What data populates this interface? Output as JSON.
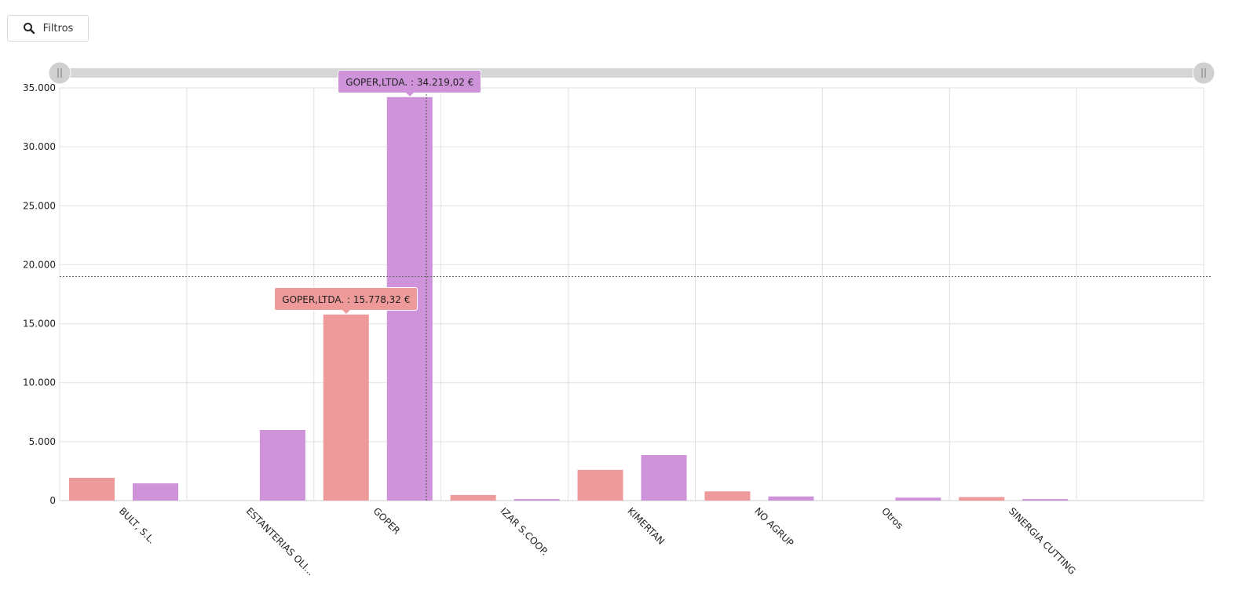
{
  "toolbar": {
    "filter_label": "Filtros",
    "filter_icon": "search-icon"
  },
  "colors": {
    "series1": "#ef9a9a",
    "series2": "#ce93d8",
    "grid": "#e0e0e0",
    "slider": "#d6d6d6"
  },
  "tooltips": [
    {
      "text": "GOPER,LTDA. : 34.219,02 €",
      "series": 1,
      "category": "GOPER"
    },
    {
      "text": "GOPER,LTDA. : 15.778,32 €",
      "series": 0,
      "category": "GOPER"
    }
  ],
  "chart_data": {
    "type": "bar",
    "categories": [
      "BULT, S.L.",
      "ESTANTERIAS OLI...",
      "GOPER",
      "IZAR  S.COOP.",
      "KIMERTAN",
      "NO AGRUP",
      "Otros",
      "SINERGIA CUTTING",
      ""
    ],
    "series": [
      {
        "values": [
          1930,
          0,
          15778.32,
          470,
          2600,
          780,
          0,
          300,
          0
        ]
      },
      {
        "values": [
          1460,
          5990,
          34219.02,
          130,
          3860,
          350,
          250,
          130,
          0
        ]
      }
    ],
    "ylim": [
      0,
      35000
    ],
    "yticks": [
      "0",
      "5.000",
      "10.000",
      "15.000",
      "20.000",
      "25.000",
      "30.000",
      "35.000"
    ],
    "reference_line": 19000,
    "grid": true,
    "legend": "none"
  }
}
